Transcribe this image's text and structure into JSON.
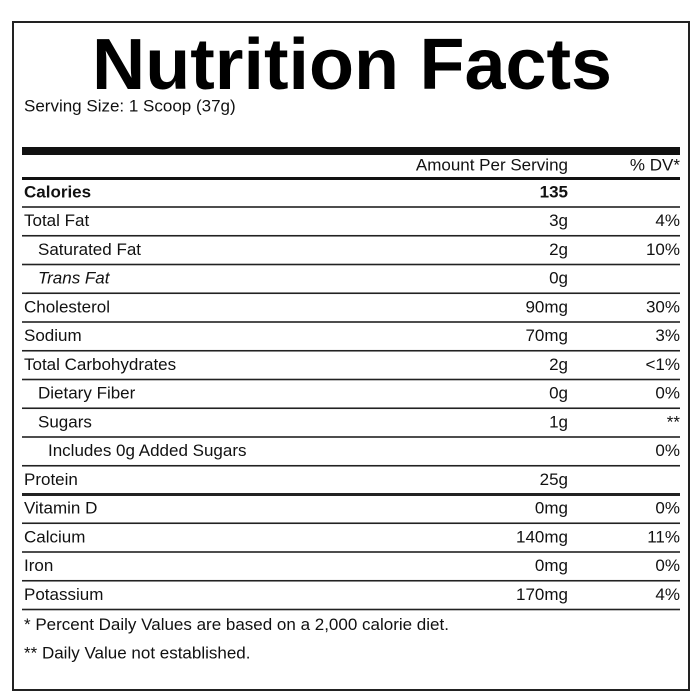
{
  "title": "Nutrition Facts",
  "serving_size": "Serving Size: 1 Scoop (37g)",
  "header": {
    "amount": "Amount Per Serving",
    "dv": "% DV*"
  },
  "rows": [
    {
      "label": "Calories",
      "amount": "135",
      "bold": true,
      "indent": 0
    },
    {
      "label": "Total Fat",
      "amount": "3g",
      "dv": "4%",
      "indent": 0
    },
    {
      "label": "Saturated Fat",
      "amount": "2g",
      "dv": "10%",
      "indent": 1
    },
    {
      "label": "Trans Fat",
      "amount": "0g",
      "indent": 1,
      "italic": true
    },
    {
      "label": "Cholesterol",
      "amount": "90mg",
      "dv": "30%",
      "indent": 0
    },
    {
      "label": "Sodium",
      "amount": "70mg",
      "dv": "3%",
      "indent": 0
    },
    {
      "label": "Total Carbohydrates",
      "amount": "2g",
      "dv": "<1%",
      "indent": 0
    },
    {
      "label": "Dietary Fiber",
      "amount": "0g",
      "dv": "0%",
      "indent": 1
    },
    {
      "label": "Sugars",
      "amount": "1g",
      "dv": "**",
      "indent": 1
    },
    {
      "label": "Includes 0g Added Sugars",
      "dv": "0%",
      "indent": 2
    },
    {
      "label": "Protein",
      "amount": "25g",
      "indent": 0,
      "thick_below": true
    },
    {
      "label": "Vitamin D",
      "amount": "0mg",
      "dv": "0%",
      "indent": 0
    },
    {
      "label": "Calcium",
      "amount": "140mg",
      "dv": "11%",
      "indent": 0
    },
    {
      "label": "Iron",
      "amount": "0mg",
      "dv": "0%",
      "indent": 0
    },
    {
      "label": "Potassium",
      "amount": "170mg",
      "dv": "4%",
      "indent": 0
    }
  ],
  "footnotes": [
    "* Percent Daily Values are based on a 2,000 calorie diet.",
    "** Daily Value not established."
  ]
}
